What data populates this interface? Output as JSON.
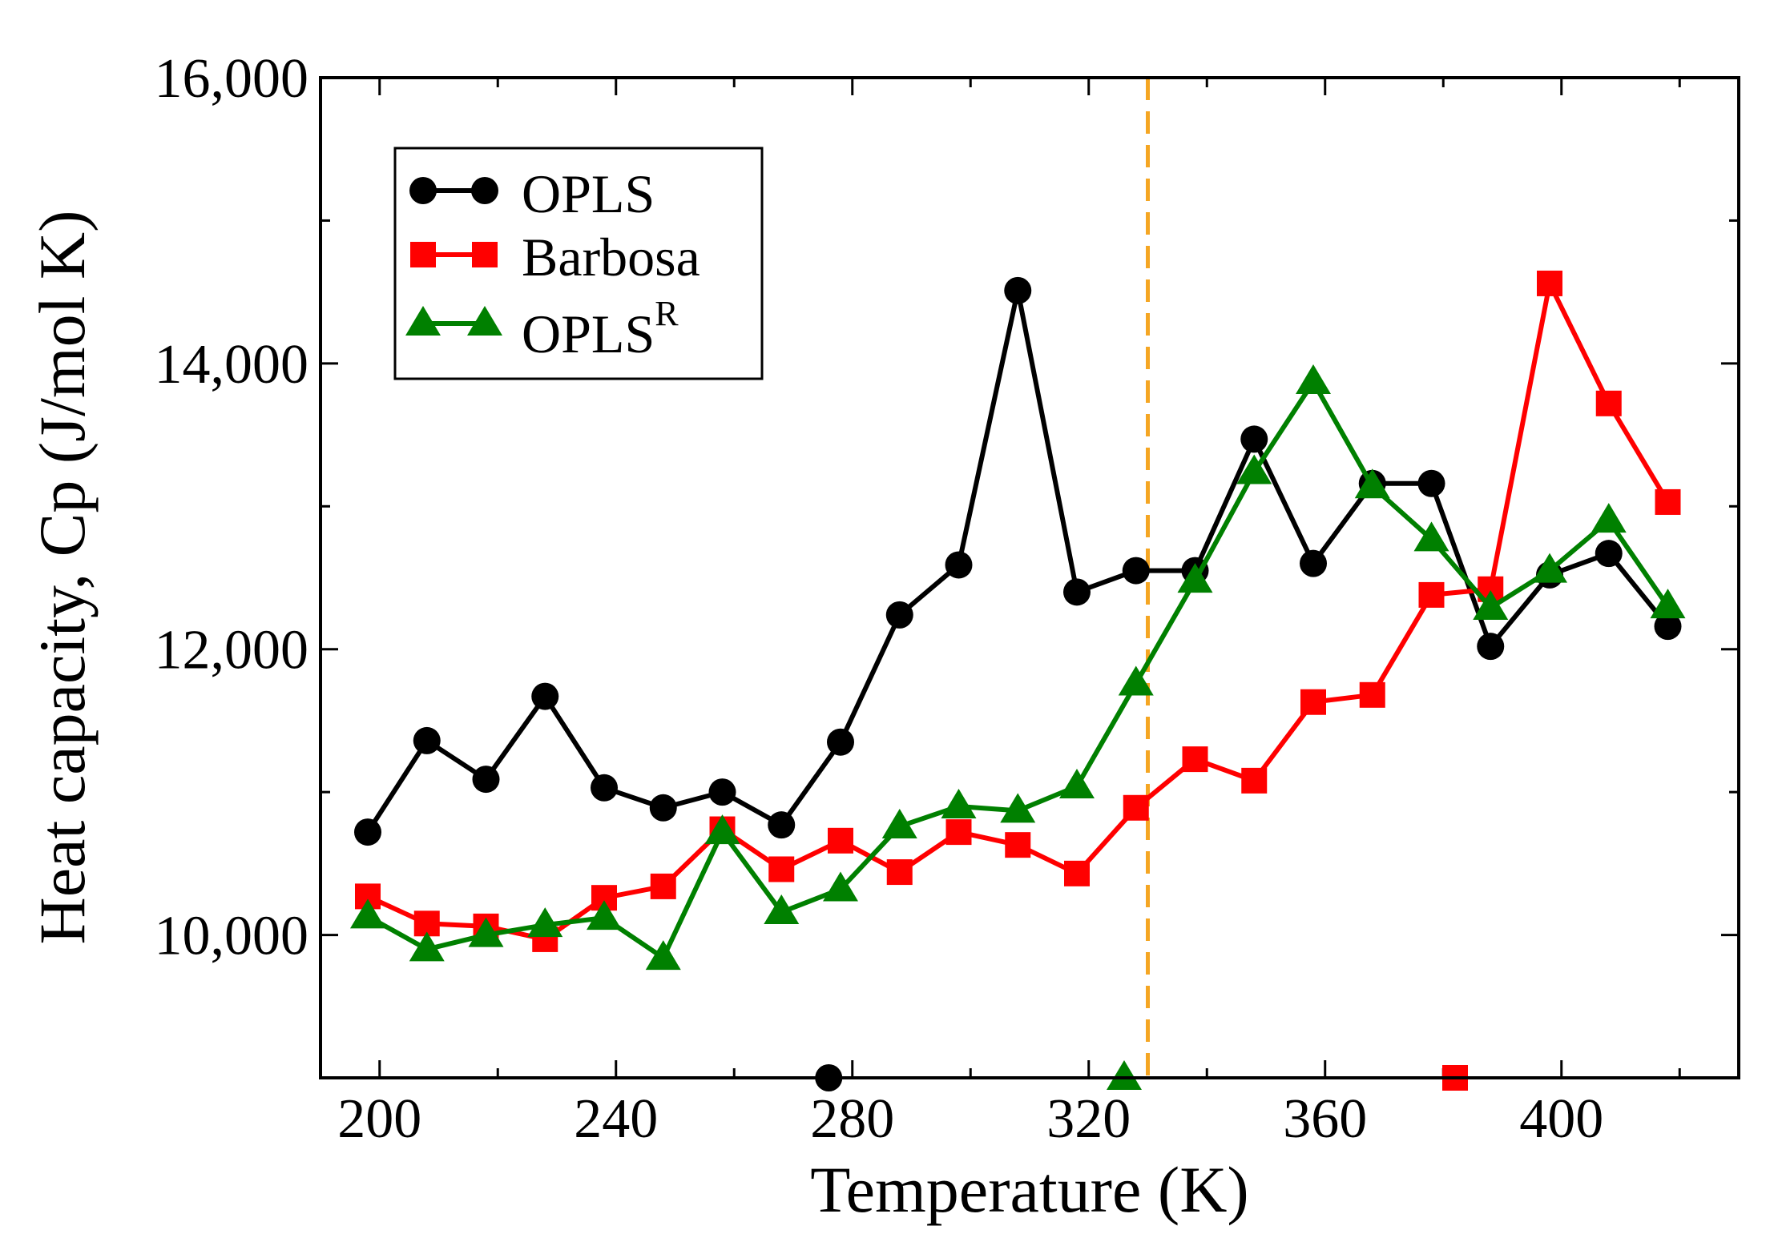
{
  "chart_data": {
    "type": "line",
    "title": "",
    "xlabel": "Temperature (K)",
    "ylabel": "Heat capacity, Cp (J/mol K)",
    "xlim": [
      190,
      430
    ],
    "ylim": [
      9000,
      16000
    ],
    "xticks": [
      200,
      240,
      280,
      320,
      360,
      400
    ],
    "xtick_labels": [
      "200",
      "240",
      "280",
      "320",
      "360",
      "400"
    ],
    "yticks": [
      10000,
      12000,
      14000,
      16000
    ],
    "ytick_labels": [
      "10,000",
      "12,000",
      "14,000",
      "16,000"
    ],
    "legend_position": "top-left",
    "reference_line": {
      "orientation": "vertical",
      "x": 330,
      "color": "#f5a623",
      "style": "dashed"
    },
    "series": [
      {
        "name": "OPLS",
        "name_superscript": "",
        "color": "#000000",
        "marker": "circle",
        "x": [
          198,
          208,
          218,
          228,
          238,
          248,
          258,
          268,
          278,
          288,
          298,
          308,
          318,
          328,
          338,
          348,
          358,
          368,
          378,
          388,
          398,
          408,
          418
        ],
        "y": [
          10720,
          11360,
          11090,
          11670,
          11030,
          10890,
          11000,
          10770,
          11350,
          12240,
          12590,
          14510,
          12400,
          12550,
          12550,
          13470,
          12600,
          13160,
          13160,
          12020,
          12520,
          12670,
          12160
        ],
        "offscale": {
          "x": 276,
          "y": 9000
        }
      },
      {
        "name": "Barbosa",
        "name_superscript": "",
        "color": "#ff0000",
        "marker": "square",
        "x": [
          198,
          208,
          218,
          228,
          238,
          248,
          258,
          268,
          278,
          288,
          298,
          308,
          318,
          328,
          338,
          348,
          358,
          368,
          378,
          388,
          398,
          408,
          418
        ],
        "y": [
          10270,
          10080,
          10060,
          9970,
          10260,
          10340,
          10740,
          10460,
          10660,
          10440,
          10720,
          10630,
          10430,
          10890,
          11230,
          11080,
          11630,
          11680,
          12380,
          12420,
          14560,
          13720,
          13030
        ],
        "offscale": {
          "x": 382,
          "y": 9000
        }
      },
      {
        "name": "OPLS",
        "name_superscript": "R",
        "color": "#008000",
        "marker": "triangle",
        "x": [
          198,
          208,
          218,
          228,
          238,
          248,
          258,
          268,
          278,
          288,
          298,
          308,
          318,
          328,
          338,
          348,
          358,
          368,
          378,
          388,
          398,
          408,
          418
        ],
        "y": [
          10130,
          9900,
          10000,
          10070,
          10120,
          9840,
          10720,
          10160,
          10320,
          10760,
          10900,
          10870,
          11040,
          11760,
          12480,
          13240,
          13870,
          13140,
          12770,
          12290,
          12550,
          12900,
          12300
        ],
        "offscale": {
          "x": 326,
          "y": 9000
        }
      }
    ]
  }
}
